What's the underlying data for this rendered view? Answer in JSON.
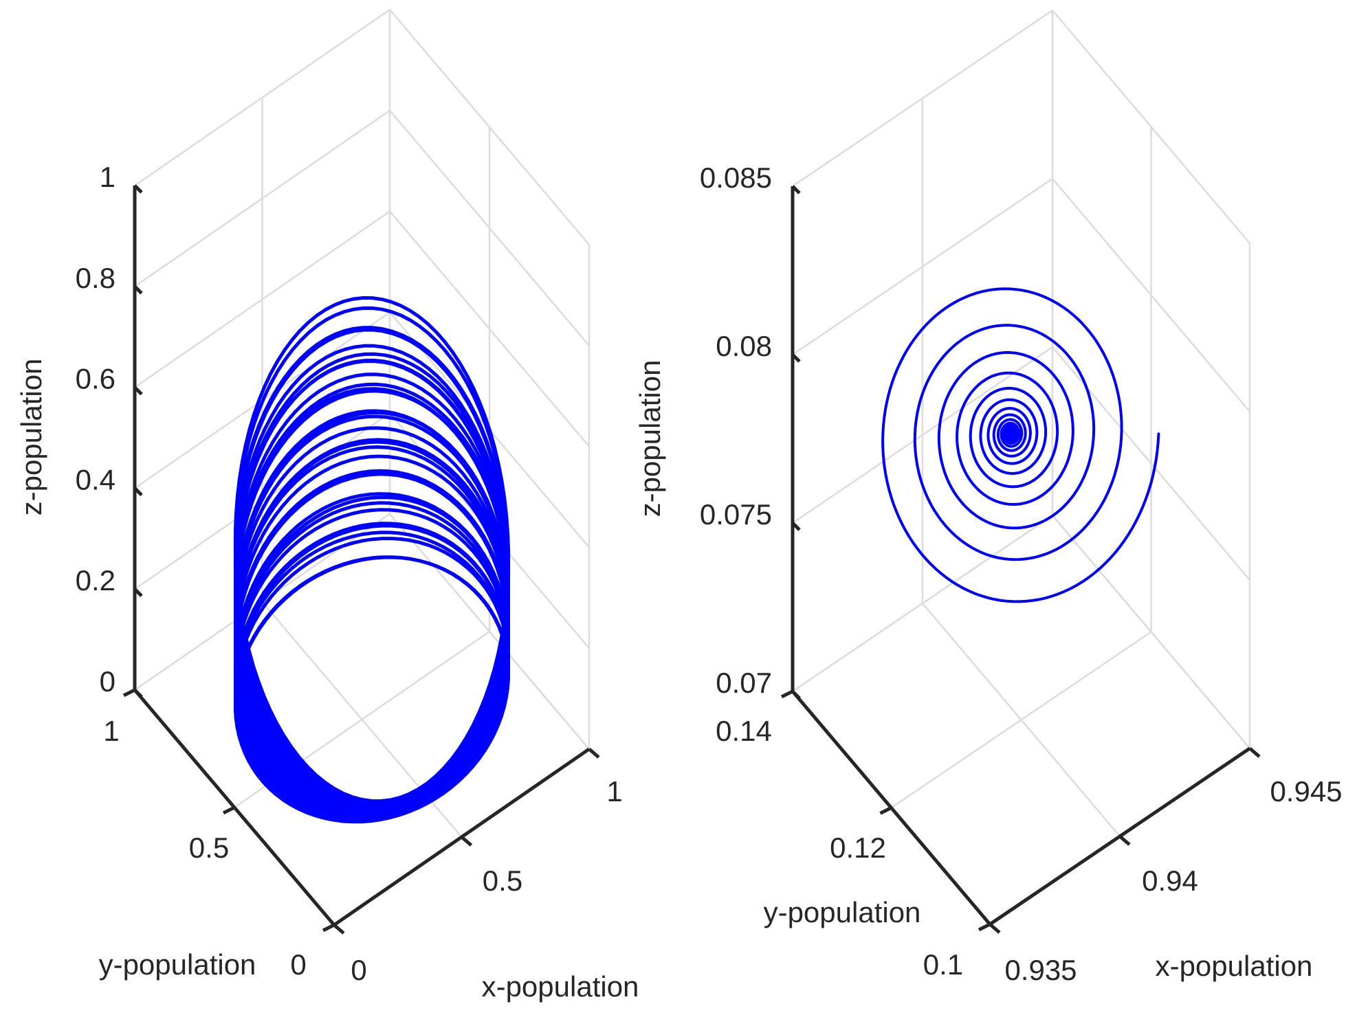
{
  "chart_data": [
    {
      "type": "line3d",
      "title": "",
      "xlabel": "x-population",
      "ylabel": "y-population",
      "zlabel": "z-population",
      "xlim": [
        0,
        1
      ],
      "ylim": [
        0,
        1
      ],
      "zlim": [
        0,
        1
      ],
      "xticks": [
        0,
        0.5,
        1
      ],
      "xtick_labels": [
        "0",
        "0.5",
        "1"
      ],
      "yticks": [
        0,
        0.5,
        1
      ],
      "ytick_labels": [
        "0",
        "0.5",
        "1"
      ],
      "zticks": [
        0,
        0.2,
        0.4,
        0.6,
        0.8,
        1
      ],
      "ztick_labels": [
        "0",
        "0.2",
        "0.4",
        "0.6",
        "0.8",
        "1"
      ],
      "grid": true,
      "series": [
        {
          "name": "trajectory",
          "color": "#0000ff",
          "description": "chaotic attractor (band of loops)",
          "loop_range": {
            "x": [
              0.03,
              0.97
            ],
            "y": [
              0.0,
              0.9
            ],
            "z": [
              0.06,
              0.55
            ]
          }
        }
      ]
    },
    {
      "type": "line3d",
      "title": "",
      "xlabel": "x-population",
      "ylabel": "y-population",
      "zlabel": "z-population",
      "xlim": [
        0.935,
        0.945
      ],
      "ylim": [
        0.1,
        0.14
      ],
      "zlim": [
        0.07,
        0.085
      ],
      "xticks": [
        0.935,
        0.94,
        0.945
      ],
      "xtick_labels": [
        "0.935",
        "0.94",
        "0.945"
      ],
      "yticks": [
        0.1,
        0.12,
        0.14
      ],
      "ytick_labels": [
        "0.1",
        "0.12",
        "0.14"
      ],
      "zticks": [
        0.07,
        0.075,
        0.08,
        0.085
      ],
      "ztick_labels": [
        "0.07",
        "0.075",
        "0.08",
        "0.085"
      ],
      "grid": true,
      "series": [
        {
          "name": "trajectory",
          "color": "#0000ff",
          "description": "spiral converging to equilibrium",
          "start": {
            "x": 0.9444,
            "y": 0.1387,
            "z": 0.0804
          },
          "equilibrium": {
            "x": 0.9396,
            "y": 0.12,
            "z": 0.0787
          }
        }
      ]
    }
  ]
}
